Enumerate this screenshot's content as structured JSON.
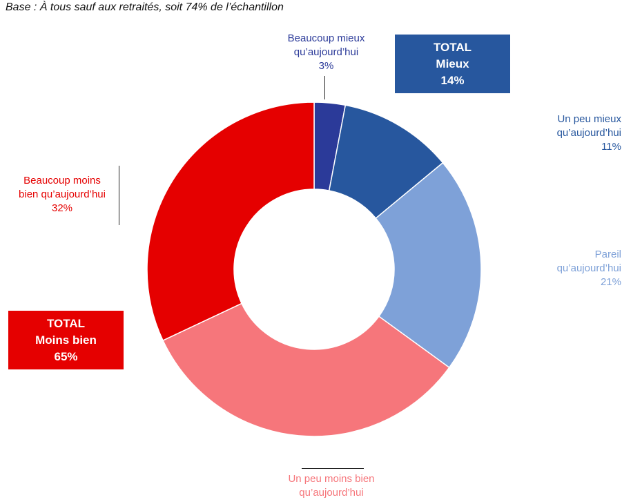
{
  "subtitle": "Base : À tous sauf aux retraités, soit 74% de l’échantillon",
  "chart_data": {
    "type": "donut",
    "slices": [
      {
        "name": "Beaucoup mieux qu’aujourd’hui",
        "line1": "Beaucoup mieux",
        "line2": "qu’aujourd’hui",
        "value": 3,
        "value_label": "3%",
        "color": "#2B3A99"
      },
      {
        "name": "Un peu mieux qu’aujourd’hui",
        "line1": "Un peu mieux",
        "line2": "qu’aujourd’hui",
        "value": 11,
        "value_label": "11%",
        "color": "#27579E"
      },
      {
        "name": "Pareil qu’aujourd’hui",
        "line1": "Pareil",
        "line2": "qu’aujourd’hui",
        "value": 21,
        "value_label": "21%",
        "color": "#7EA1D8"
      },
      {
        "name": "Un peu moins bien qu’aujourd’hui",
        "line1": "Un peu moins bien",
        "line2": "qu’aujourd’hui",
        "value": 33,
        "value_label": "",
        "color": "#F6767B"
      },
      {
        "name": "Beaucoup moins bien qu’aujourd’hui",
        "line1": "Beaucoup moins",
        "line2": "bien qu’aujourd’hui",
        "value": 32,
        "value_label": "32%",
        "color": "#E50000"
      }
    ],
    "label_colors": {
      "beaucoup_mieux": "#2B3A99",
      "un_peu_mieux": "#27579E",
      "pareil": "#7EA1D8",
      "un_peu_moins_bien": "#F6767B",
      "beaucoup_moins_bien": "#E50000"
    }
  },
  "totals": {
    "mieux": {
      "line1": "TOTAL",
      "line2": "Mieux",
      "value_label": "14%",
      "color": "#27579E"
    },
    "moins_bien": {
      "line1": "TOTAL",
      "line2": "Moins bien",
      "value_label": "65%",
      "color": "#E50000"
    }
  }
}
